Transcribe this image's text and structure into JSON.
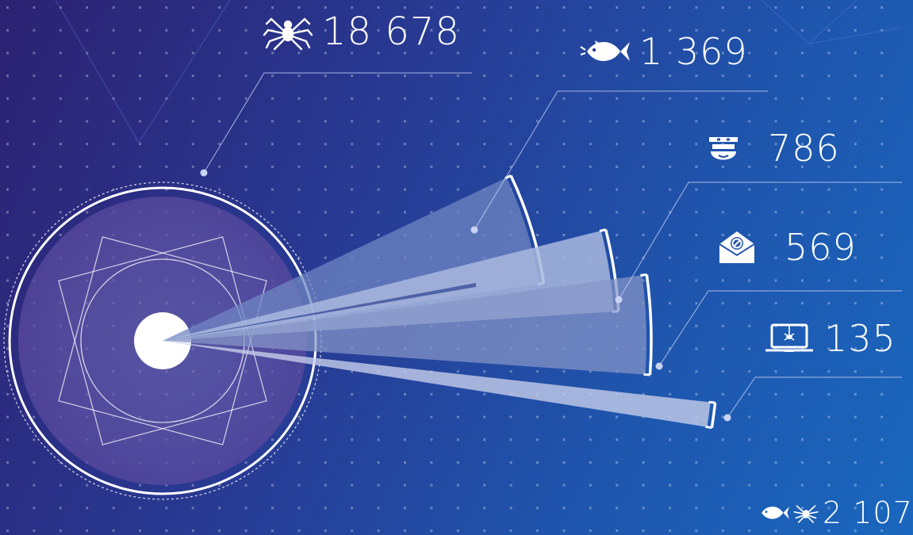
{
  "chart_data": {
    "type": "radial-bar",
    "total": {
      "label": "18 678",
      "icon": "spider-icon"
    },
    "combined": {
      "label": "2 107",
      "icons": [
        "fish-icon",
        "spider-icon"
      ]
    },
    "categories": [
      {
        "label": "1 369",
        "value": 1369,
        "icon": "fish-icon"
      },
      {
        "label": "786",
        "value": 786,
        "icon": "bandit-mask-icon"
      },
      {
        "label": "569",
        "value": 569,
        "icon": "blocked-mail-icon"
      },
      {
        "label": "135",
        "value": 135,
        "icon": "infected-laptop-icon"
      }
    ]
  },
  "colors": {
    "background_start": "#2d2172",
    "background_end": "#1a67be",
    "text": "#ffffff",
    "wedge_1": "#6f85c2",
    "wedge_2": "#a9b9de",
    "wedge_3": "#8795c8",
    "wedge_4": "#c5cdea"
  }
}
